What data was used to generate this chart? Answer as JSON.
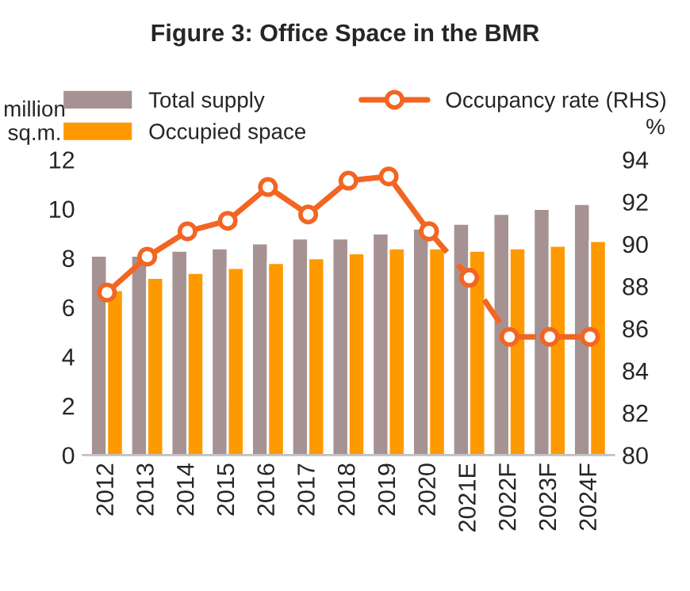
{
  "chart_data": {
    "type": "bar",
    "title": "Figure 3: Office Space in the BMR",
    "ylabel": "million\nsq.m.",
    "y2label": "%",
    "categories": [
      "2012",
      "2013",
      "2014",
      "2015",
      "2016",
      "2017",
      "2018",
      "2019",
      "2020",
      "2021E",
      "2022F",
      "2023F",
      "2024F"
    ],
    "series": [
      {
        "name": "Total supply",
        "color": "#a69292",
        "values": [
          8.1,
          8.1,
          8.3,
          8.4,
          8.6,
          8.8,
          8.8,
          9.0,
          9.2,
          9.4,
          9.8,
          10.0,
          10.2
        ]
      },
      {
        "name": "Occupied space",
        "color": "#ff9900",
        "values": [
          6.7,
          7.2,
          7.4,
          7.6,
          7.8,
          8.0,
          8.2,
          8.4,
          8.4,
          8.3,
          8.4,
          8.5,
          8.7
        ]
      },
      {
        "name": "Occupancy rate (RHS)",
        "type": "line",
        "axis": "y2",
        "color": "#f26522",
        "marker": "circle",
        "line_style": "solid",
        "values": [
          87.7,
          89.4,
          90.6,
          91.1,
          92.7,
          91.4,
          93.0,
          93.2,
          90.6,
          null,
          null,
          null,
          null
        ]
      },
      {
        "type": "line",
        "axis": "y2",
        "color": "#f26522",
        "marker": "circle",
        "line_style": "dashed",
        "values": [
          null,
          null,
          null,
          null,
          null,
          null,
          null,
          null,
          90.6,
          88.4,
          85.6,
          85.6,
          85.6
        ]
      }
    ],
    "ylim": [
      0,
      12
    ],
    "yticks": [
      0,
      2,
      4,
      6,
      8,
      10,
      12
    ],
    "y2lim": [
      80,
      94
    ],
    "y2ticks": [
      80,
      82,
      84,
      86,
      88,
      90,
      92,
      94
    ],
    "grid": false,
    "legend": "top"
  }
}
